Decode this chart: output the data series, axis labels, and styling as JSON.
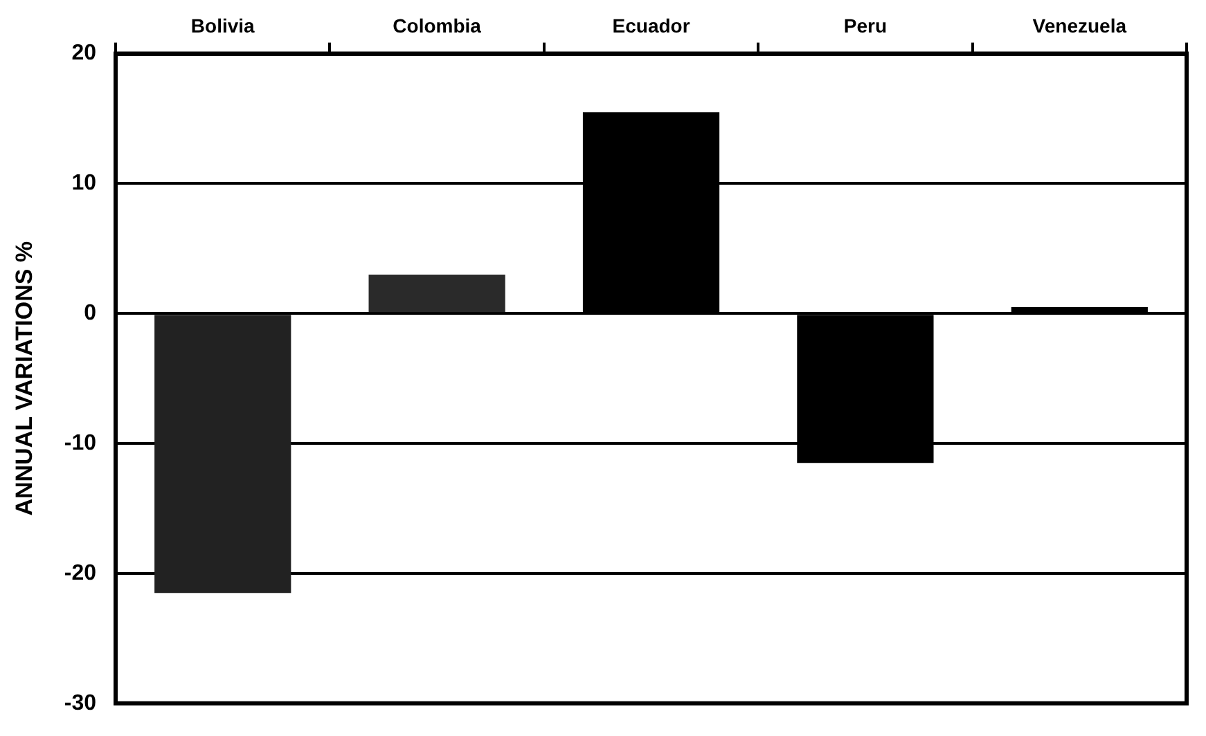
{
  "chart_data": {
    "type": "bar",
    "categories": [
      "Bolivia",
      "Colombia",
      "Ecuador",
      "Peru",
      "Venezuela"
    ],
    "values": [
      -21.5,
      3,
      15.5,
      -11.5,
      0.5
    ],
    "colors": [
      "#222222",
      "#2a2a2a",
      "#000000",
      "#000000",
      "#000000"
    ],
    "ylabel": "ANNUAL VARIATIONS %",
    "ylim": [
      -30,
      20
    ],
    "yticks": [
      -30,
      -20,
      -10,
      0,
      10,
      20
    ],
    "grid": "y",
    "legend": false
  }
}
